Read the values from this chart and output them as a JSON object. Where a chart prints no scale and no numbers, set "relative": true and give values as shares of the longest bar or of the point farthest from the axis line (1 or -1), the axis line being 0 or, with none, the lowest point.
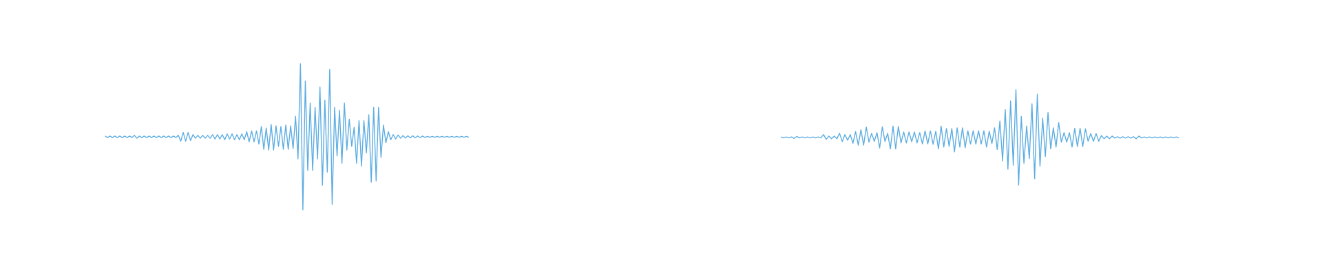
{
  "chart_data": [
    {
      "type": "line",
      "relative": true,
      "color": "#5dade2",
      "marker": "none",
      "line_style": "solid",
      "categories": [
        null,
        null,
        null,
        null,
        null,
        null,
        null,
        null,
        null,
        null,
        null,
        null,
        null,
        null,
        null,
        null,
        null,
        null,
        null,
        null,
        null,
        null,
        null,
        null,
        null,
        null,
        null,
        null,
        null,
        null,
        null,
        null,
        null,
        null,
        null,
        null,
        null,
        null,
        null,
        null,
        null,
        null,
        null,
        null,
        null,
        null,
        null,
        null,
        null,
        null,
        null,
        null,
        null,
        null,
        null,
        null,
        null,
        null,
        null,
        null,
        null,
        null,
        null,
        null,
        null,
        null,
        null,
        null,
        null,
        null,
        null,
        null,
        null,
        null,
        null,
        null,
        null,
        null,
        null,
        null,
        null,
        null,
        null,
        null,
        null,
        null,
        null,
        null,
        null,
        null,
        null,
        null,
        null,
        null,
        null,
        null,
        null,
        null,
        null,
        null,
        null,
        null,
        null,
        null,
        null,
        null,
        null,
        null,
        null,
        null,
        null,
        null,
        null,
        null,
        null,
        null,
        null,
        null,
        null,
        null,
        null,
        null,
        null,
        null,
        null,
        null,
        null,
        null,
        null,
        null,
        null,
        null,
        null,
        null,
        null,
        null,
        null,
        null,
        null,
        null,
        null,
        null,
        null,
        null,
        null,
        null,
        null,
        null,
        null,
        null
      ],
      "values": [
        0.505,
        0.495,
        0.505,
        0.495,
        0.505,
        0.495,
        0.505,
        0.495,
        0.505,
        0.495,
        0.505,
        0.495,
        0.51,
        0.49,
        0.505,
        0.495,
        0.505,
        0.495,
        0.505,
        0.495,
        0.505,
        0.495,
        0.505,
        0.495,
        0.505,
        0.495,
        0.505,
        0.495,
        0.505,
        0.495,
        0.51,
        0.47,
        0.53,
        0.47,
        0.53,
        0.475,
        0.515,
        0.49,
        0.51,
        0.49,
        0.51,
        0.49,
        0.51,
        0.49,
        0.515,
        0.485,
        0.515,
        0.485,
        0.515,
        0.48,
        0.52,
        0.485,
        0.52,
        0.48,
        0.515,
        0.48,
        0.52,
        0.48,
        0.535,
        0.465,
        0.54,
        0.465,
        0.54,
        0.45,
        0.57,
        0.415,
        0.56,
        0.41,
        0.585,
        0.41,
        0.575,
        0.435,
        0.57,
        0.415,
        0.58,
        0.415,
        0.575,
        0.42,
        0.64,
        0.35,
        1,
        0,
        0.88,
        0.27,
        0.73,
        0.27,
        0.7,
        0.35,
        0.84,
        0.17,
        0.75,
        0.26,
        0.96,
        0.04,
        0.7,
        0.37,
        0.68,
        0.32,
        0.73,
        0.41,
        0.62,
        0.435,
        0.565,
        0.32,
        0.61,
        0.3,
        0.61,
        0.39,
        0.65,
        0.19,
        0.7,
        0.2,
        0.7,
        0.36,
        0.58,
        0.46,
        0.535,
        0.48,
        0.515,
        0.485,
        0.512,
        0.49,
        0.508,
        0.492,
        0.507,
        0.493,
        0.507,
        0.493,
        0.506,
        0.494,
        0.505,
        0.496,
        0.503,
        0.497,
        0.503,
        0.497,
        0.503,
        0.497,
        0.503,
        0.497,
        0.503,
        0.497,
        0.503,
        0.497,
        0.503,
        0.497,
        0.503,
        0.497,
        0.503,
        0.497
      ]
    },
    {
      "type": "line",
      "relative": true,
      "color": "#5dade2",
      "marker": "none",
      "line_style": "solid",
      "categories": [
        null,
        null,
        null,
        null,
        null,
        null,
        null,
        null,
        null,
        null,
        null,
        null,
        null,
        null,
        null,
        null,
        null,
        null,
        null,
        null,
        null,
        null,
        null,
        null,
        null,
        null,
        null,
        null,
        null,
        null,
        null,
        null,
        null,
        null,
        null,
        null,
        null,
        null,
        null,
        null,
        null,
        null,
        null,
        null,
        null,
        null,
        null,
        null,
        null,
        null,
        null,
        null,
        null,
        null,
        null,
        null,
        null,
        null,
        null,
        null,
        null,
        null,
        null,
        null,
        null,
        null,
        null,
        null,
        null,
        null,
        null,
        null,
        null,
        null,
        null,
        null,
        null,
        null,
        null,
        null,
        null,
        null,
        null,
        null,
        null,
        null,
        null,
        null,
        null,
        null,
        null,
        null,
        null,
        null,
        null,
        null,
        null,
        null,
        null,
        null,
        null,
        null,
        null,
        null,
        null,
        null,
        null,
        null,
        null,
        null,
        null,
        null,
        null,
        null,
        null,
        null,
        null,
        null,
        null,
        null,
        null,
        null,
        null,
        null,
        null,
        null,
        null,
        null,
        null,
        null,
        null,
        null,
        null,
        null,
        null,
        null,
        null,
        null,
        null,
        null,
        null,
        null,
        null,
        null,
        null,
        null,
        null,
        null,
        null,
        null
      ],
      "values": [
        0.505,
        0.495,
        0.505,
        0.495,
        0.505,
        0.49,
        0.51,
        0.495,
        0.505,
        0.495,
        0.505,
        0.495,
        0.505,
        0.495,
        0.505,
        0.495,
        0.53,
        0.48,
        0.514,
        0.486,
        0.514,
        0.486,
        0.543,
        0.457,
        0.529,
        0.471,
        0.529,
        0.44,
        0.56,
        0.42,
        0.58,
        0.42,
        0.607,
        0.45,
        0.543,
        0.457,
        0.55,
        0.39,
        0.61,
        0.457,
        0.543,
        0.38,
        0.618,
        0.38,
        0.615,
        0.443,
        0.557,
        0.443,
        0.557,
        0.455,
        0.557,
        0.443,
        0.55,
        0.432,
        0.568,
        0.432,
        0.568,
        0.428,
        0.565,
        0.38,
        0.618,
        0.4,
        0.593,
        0.407,
        0.593,
        0.35,
        0.6,
        0.4,
        0.6,
        0.393,
        0.57,
        0.43,
        0.57,
        0.43,
        0.57,
        0.43,
        0.57,
        0.4,
        0.565,
        0.435,
        0.6,
        0.375,
        0.67,
        0.255,
        0.79,
        0.17,
        0.88,
        0.21,
        1,
        0,
        0.72,
        0.23,
        0.62,
        0.28,
        0.85,
        0.07,
        0.95,
        0.2,
        0.7,
        0.3,
        0.76,
        0.38,
        0.6,
        0.4,
        0.655,
        0.45,
        0.55,
        0.45,
        0.55,
        0.4,
        0.595,
        0.405,
        0.595,
        0.405,
        0.59,
        0.46,
        0.54,
        0.46,
        0.54,
        0.46,
        0.52,
        0.486,
        0.514,
        0.486,
        0.514,
        0.493,
        0.507,
        0.493,
        0.507,
        0.493,
        0.507,
        0.493,
        0.507,
        0.486,
        0.514,
        0.495,
        0.505,
        0.495,
        0.505,
        0.495,
        0.505,
        0.495,
        0.505,
        0.495,
        0.505,
        0.495,
        0.505,
        0.495,
        0.505,
        0.495
      ]
    }
  ]
}
